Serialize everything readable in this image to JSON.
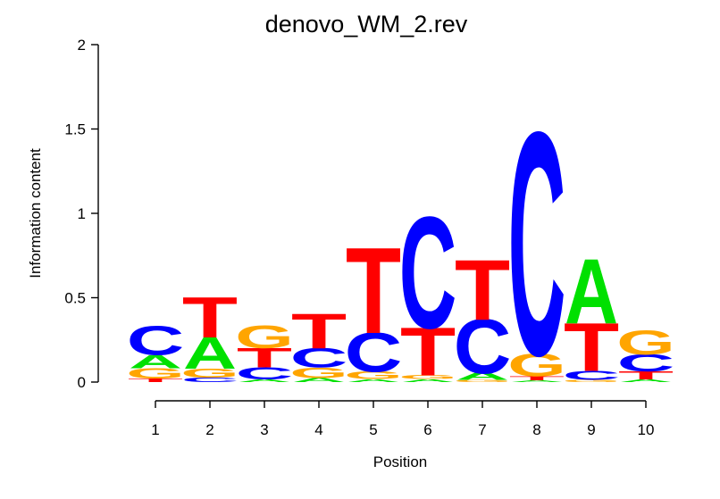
{
  "figure": {
    "title": "denovo_WM_2.rev"
  },
  "chart_data": {
    "type": "sequence_logo",
    "title": "denovo_WM_2.rev",
    "xlabel": "Position",
    "ylabel": "Information content",
    "ylim": [
      0,
      2
    ],
    "yticks": [
      0,
      0.5,
      1,
      1.5,
      2
    ],
    "positions": [
      1,
      2,
      3,
      4,
      5,
      6,
      7,
      8,
      9,
      10
    ],
    "letter_colors": {
      "A": "#00E000",
      "C": "#0000FF",
      "G": "#FFA500",
      "T": "#FF0000"
    },
    "axis_color": "#000000",
    "stacks": [
      [
        {
          "letter": "T",
          "ic": 0.021
        },
        {
          "letter": "G",
          "ic": 0.062
        },
        {
          "letter": "A",
          "ic": 0.079
        },
        {
          "letter": "C",
          "ic": 0.168
        }
      ],
      [
        {
          "letter": "C",
          "ic": 0.026
        },
        {
          "letter": "G",
          "ic": 0.053
        },
        {
          "letter": "A",
          "ic": 0.185
        },
        {
          "letter": "T",
          "ic": 0.238
        }
      ],
      [
        {
          "letter": "A",
          "ic": 0.016
        },
        {
          "letter": "C",
          "ic": 0.071
        },
        {
          "letter": "T",
          "ic": 0.115
        },
        {
          "letter": "G",
          "ic": 0.132
        }
      ],
      [
        {
          "letter": "A",
          "ic": 0.024
        },
        {
          "letter": "G",
          "ic": 0.062
        },
        {
          "letter": "C",
          "ic": 0.115
        },
        {
          "letter": "T",
          "ic": 0.203
        }
      ],
      [
        {
          "letter": "A",
          "ic": 0.018
        },
        {
          "letter": "G",
          "ic": 0.044
        },
        {
          "letter": "C",
          "ic": 0.229
        },
        {
          "letter": "T",
          "ic": 0.503
        }
      ],
      [
        {
          "letter": "A",
          "ic": 0.018
        },
        {
          "letter": "G",
          "ic": 0.022
        },
        {
          "letter": "T",
          "ic": 0.282
        },
        {
          "letter": "C",
          "ic": 0.653
        }
      ],
      [
        {
          "letter": "G",
          "ic": 0.012
        },
        {
          "letter": "A",
          "ic": 0.042
        },
        {
          "letter": "C",
          "ic": 0.317
        },
        {
          "letter": "T",
          "ic": 0.353
        }
      ],
      [
        {
          "letter": "A",
          "ic": 0.01
        },
        {
          "letter": "T",
          "ic": 0.024
        },
        {
          "letter": "G",
          "ic": 0.132
        },
        {
          "letter": "C",
          "ic": 1.305
        }
      ],
      [
        {
          "letter": "G",
          "ic": 0.012
        },
        {
          "letter": "C",
          "ic": 0.053
        },
        {
          "letter": "T",
          "ic": 0.282
        },
        {
          "letter": "A",
          "ic": 0.379
        }
      ],
      [
        {
          "letter": "A",
          "ic": 0.016
        },
        {
          "letter": "T",
          "ic": 0.048
        },
        {
          "letter": "C",
          "ic": 0.1
        },
        {
          "letter": "G",
          "ic": 0.141
        }
      ]
    ]
  }
}
